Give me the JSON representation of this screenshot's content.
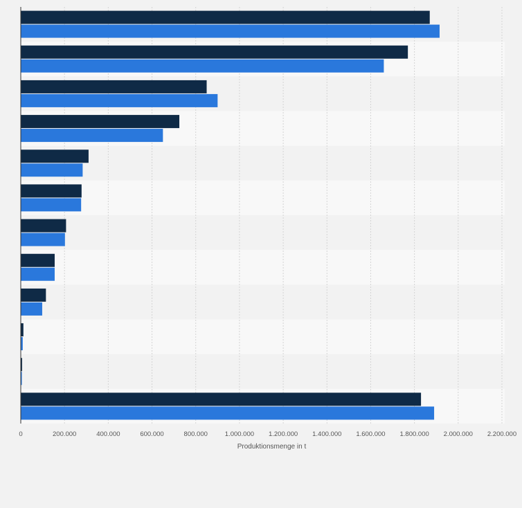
{
  "chart_data": {
    "type": "bar",
    "orientation": "horizontal",
    "categories": [
      "",
      "",
      "",
      "",
      "",
      "",
      "",
      "",
      "",
      "",
      "",
      ""
    ],
    "series": [
      {
        "color": "#0f2a46",
        "values": [
          1870000,
          1770000,
          850000,
          725000,
          310000,
          278000,
          207000,
          155000,
          115000,
          12000,
          6000,
          1830000
        ]
      },
      {
        "color": "#2a78dc",
        "values": [
          1915000,
          1660000,
          900000,
          650000,
          283000,
          276000,
          202000,
          155000,
          98000,
          9000,
          5000,
          1890000
        ]
      }
    ],
    "xlabel": "Produktionsmenge in t",
    "xlim": [
      0,
      2200000
    ],
    "xticks": [
      0,
      200000,
      400000,
      600000,
      800000,
      1000000,
      1200000,
      1400000,
      1600000,
      1800000,
      2000000,
      2200000
    ],
    "xtick_labels": [
      "0",
      "200.000",
      "400.000",
      "600.000",
      "800.000",
      "1.000.000",
      "1.200.000",
      "1.400.000",
      "1.600.000",
      "1.800.000",
      "2.000.000",
      "2.200.000"
    ],
    "grid": true,
    "legend": false,
    "colors": {
      "background": "#f2f2f2",
      "band_dark": "#f2f2f2",
      "band_light": "#f8f8f8",
      "grid": "#d4d4d4"
    }
  }
}
